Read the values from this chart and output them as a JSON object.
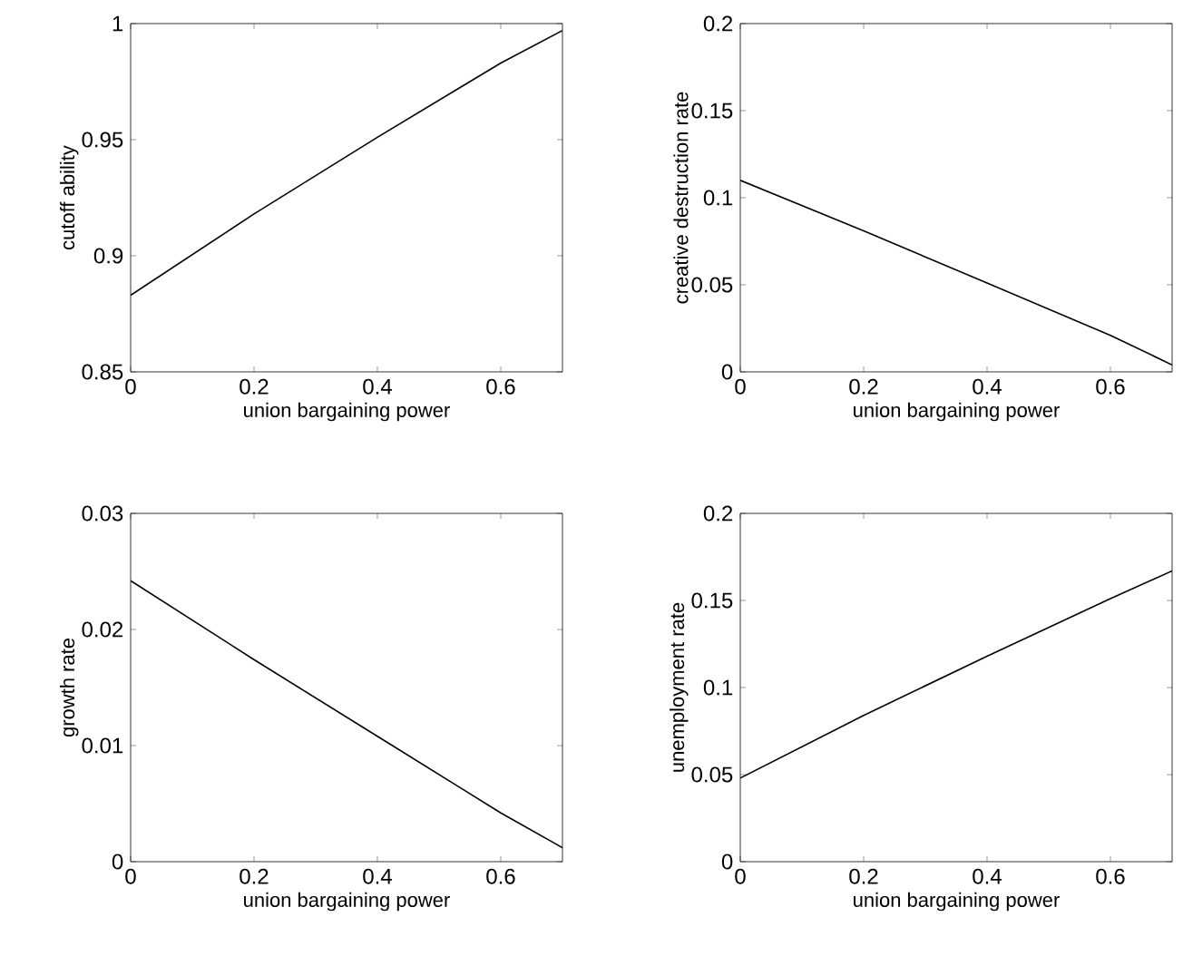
{
  "chart_data": [
    {
      "type": "line",
      "xlabel": "union bargaining power",
      "ylabel": "cutoff ability",
      "x": [
        0,
        0.2,
        0.4,
        0.6,
        0.7
      ],
      "xlim": [
        0,
        0.7
      ],
      "xticks": [
        0,
        0.2,
        0.4,
        0.6
      ],
      "ylim": [
        0.85,
        1
      ],
      "yticks": [
        0.85,
        0.9,
        0.95,
        1
      ],
      "series": [
        {
          "color": "#000000",
          "values": [
            0.883,
            0.918,
            0.951,
            0.983,
            0.997
          ]
        }
      ]
    },
    {
      "type": "line",
      "xlabel": "union bargaining power",
      "ylabel": "creative destruction rate",
      "x": [
        0,
        0.2,
        0.4,
        0.6,
        0.7
      ],
      "xlim": [
        0,
        0.7
      ],
      "xticks": [
        0,
        0.2,
        0.4,
        0.6
      ],
      "ylim": [
        0,
        0.2
      ],
      "yticks": [
        0,
        0.05,
        0.1,
        0.15,
        0.2
      ],
      "series": [
        {
          "color": "#000000",
          "values": [
            0.11,
            0.081,
            0.051,
            0.021,
            0.004
          ]
        }
      ]
    },
    {
      "type": "line",
      "xlabel": "union bargaining power",
      "ylabel": "growth rate",
      "x": [
        0,
        0.2,
        0.4,
        0.6,
        0.7
      ],
      "xlim": [
        0,
        0.7
      ],
      "xticks": [
        0,
        0.2,
        0.4,
        0.6
      ],
      "ylim": [
        0,
        0.03
      ],
      "yticks": [
        0,
        0.01,
        0.02,
        0.03
      ],
      "series": [
        {
          "color": "#000000",
          "values": [
            0.0242,
            0.0174,
            0.0108,
            0.0042,
            0.0012
          ]
        }
      ]
    },
    {
      "type": "line",
      "xlabel": "union bargaining power",
      "ylabel": "unemployment rate",
      "x": [
        0,
        0.2,
        0.4,
        0.6,
        0.7
      ],
      "xlim": [
        0,
        0.7
      ],
      "xticks": [
        0,
        0.2,
        0.4,
        0.6
      ],
      "ylim": [
        0,
        0.2
      ],
      "yticks": [
        0,
        0.05,
        0.1,
        0.15,
        0.2
      ],
      "series": [
        {
          "color": "#000000",
          "values": [
            0.048,
            0.084,
            0.118,
            0.151,
            0.167
          ]
        }
      ]
    }
  ]
}
